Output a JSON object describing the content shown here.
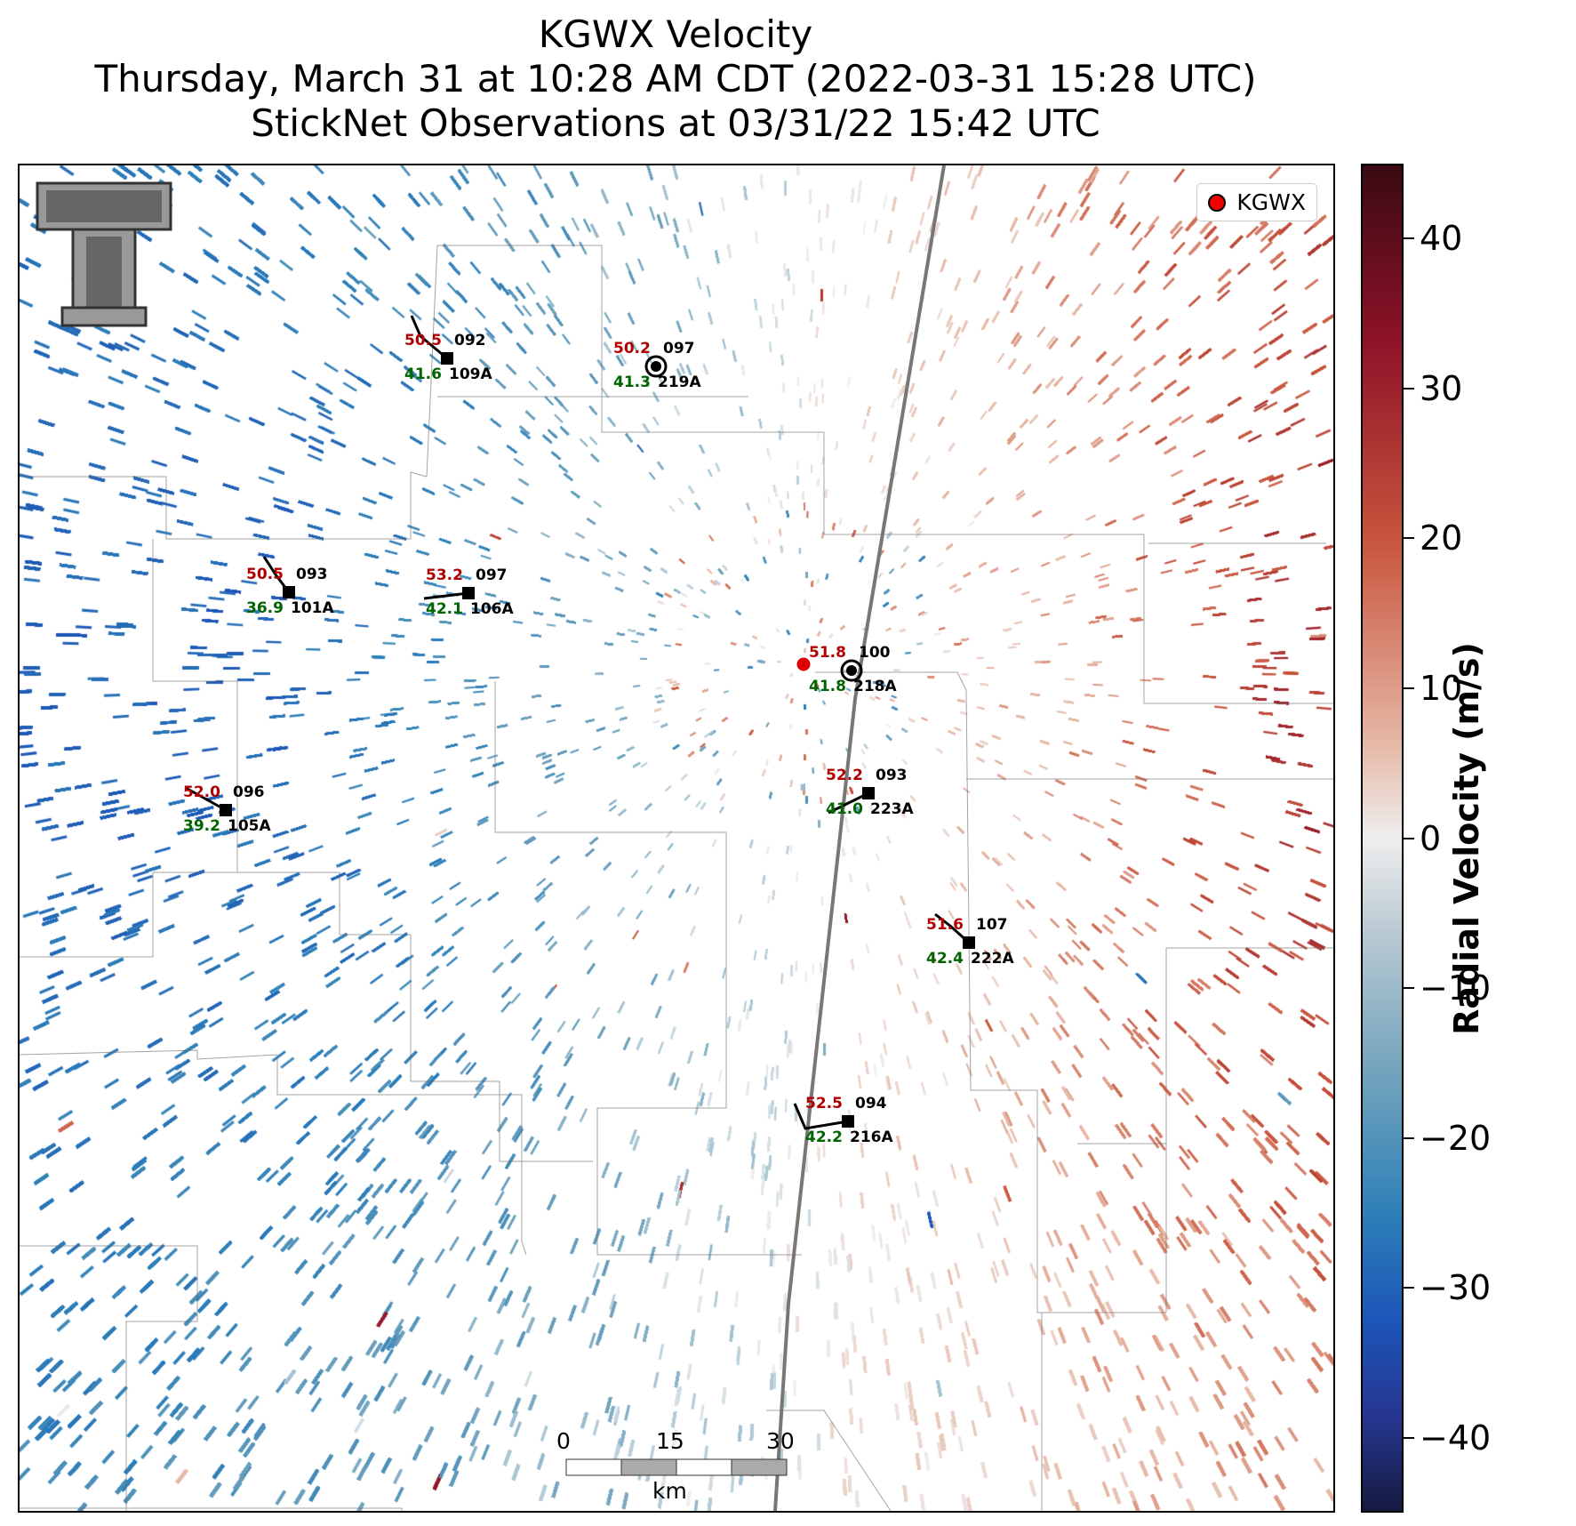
{
  "title": {
    "line1": "KGWX Velocity",
    "line2": "Thursday, March 31 at 10:28 AM CDT (2022-03-31 15:28 UTC)",
    "line3": "StickNet Observations at 03/31/22 15:42 UTC"
  },
  "legend": {
    "label": "KGWX",
    "color": "#e00000"
  },
  "colorbar": {
    "label": "Radial Velocity (m/s)",
    "ticks": [
      "40",
      "30",
      "20",
      "10",
      "0",
      "−10",
      "−20",
      "−30",
      "−40"
    ],
    "range": [
      -45,
      45
    ],
    "colors": [
      "#151a40",
      "#1c55b8",
      "#6fa2bc",
      "#eeeeee",
      "#c8553d",
      "#3a0a12"
    ]
  },
  "scale_bar": {
    "labels": [
      "0",
      "15",
      "30"
    ],
    "unit": "km"
  },
  "logo": "texas-tech-double-t-logo",
  "stations": [
    {
      "id": "109A",
      "temp": "50.5",
      "dew": "41.6",
      "code": "092",
      "symbol": "square"
    },
    {
      "id": "219A",
      "temp": "50.2",
      "dew": "41.3",
      "code": "097",
      "symbol": "calm-circle"
    },
    {
      "id": "101A",
      "temp": "50.5",
      "dew": "36.9",
      "code": "093",
      "symbol": "square"
    },
    {
      "id": "106A",
      "temp": "53.2",
      "dew": "42.1",
      "code": "097",
      "symbol": "square"
    },
    {
      "id": "218A",
      "temp": "51.8",
      "dew": "41.8",
      "code": "100",
      "symbol": "calm-circle"
    },
    {
      "id": "105A",
      "temp": "52.0",
      "dew": "39.2",
      "code": "096",
      "symbol": "square"
    },
    {
      "id": "223A",
      "temp": "52.2",
      "dew": "41.0",
      "code": "093",
      "symbol": "square"
    },
    {
      "id": "222A",
      "temp": "51.6",
      "dew": "42.4",
      "code": "107",
      "symbol": "square"
    },
    {
      "id": "216A",
      "temp": "52.5",
      "dew": "42.2",
      "code": "094",
      "symbol": "square"
    }
  ]
}
